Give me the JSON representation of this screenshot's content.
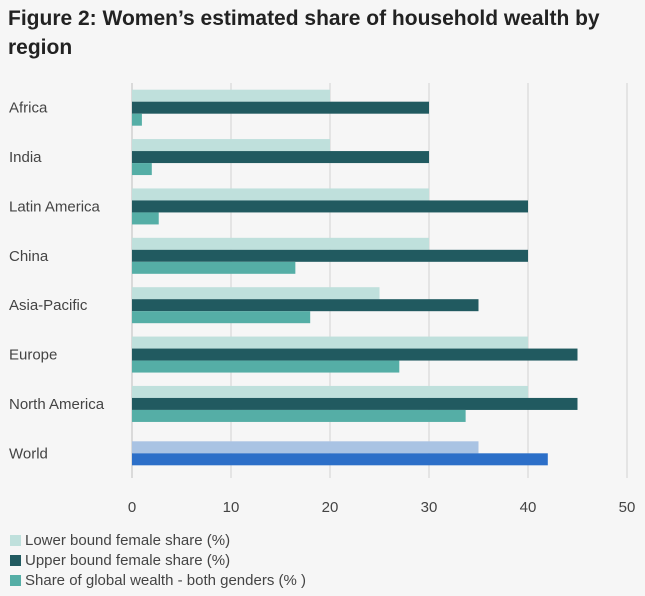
{
  "chart_data": {
    "type": "bar",
    "orientation": "horizontal",
    "title": "Figure 2: Women’s estimated share of household wealth by region",
    "categories": [
      "Africa",
      "India",
      "Latin America",
      "China",
      "Asia-Pacific",
      "Europe",
      "North America",
      "World"
    ],
    "series": [
      {
        "name": "Lower bound female share (%)",
        "values": [
          20,
          20,
          30,
          30,
          25,
          40,
          40,
          35
        ],
        "color": "#bfe0dc",
        "world_color": "#a9c3e3"
      },
      {
        "name": "Upper bound female share (%)",
        "values": [
          30,
          30,
          40,
          40,
          35,
          45,
          45,
          42
        ],
        "color": "#215a60",
        "world_color": "#2c6fc8"
      },
      {
        "name": "Share of global wealth - both genders (% )",
        "values": [
          1,
          2,
          2.7,
          16.5,
          18,
          27,
          33.7,
          null
        ],
        "color": "#55aea6"
      }
    ],
    "xlim": [
      0,
      50
    ],
    "xticks": [
      "0",
      "10",
      "20",
      "30",
      "40",
      "50"
    ],
    "grid": true,
    "legend_position": "bottom-left"
  }
}
